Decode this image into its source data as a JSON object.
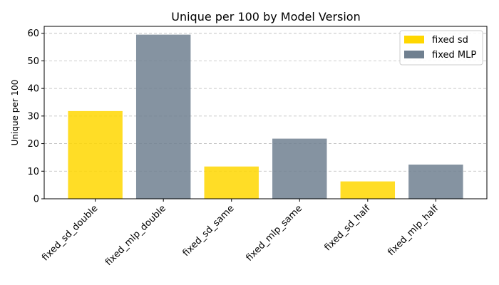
{
  "chart_data": {
    "type": "bar",
    "title": "Unique per 100 by Model Version",
    "xlabel": "",
    "ylabel": "Unique per 100",
    "ylim": [
      0,
      62.5
    ],
    "yticks": [
      0,
      10,
      20,
      30,
      40,
      50,
      60
    ],
    "grid": "y-dashed",
    "legend_position": "top-right",
    "categories": [
      "fixed_sd_double",
      "fixed_mlp_double",
      "fixed_sd_same",
      "fixed_mlp_same",
      "fixed_sd_half",
      "fixed_mlp_half"
    ],
    "values": [
      31.8,
      59.5,
      11.7,
      21.8,
      6.3,
      12.4
    ],
    "bar_series": [
      0,
      1,
      0,
      1,
      0,
      1
    ],
    "series": [
      {
        "name": "fixed sd",
        "color": "#FFD700"
      },
      {
        "name": "fixed MLP",
        "color": "#708090"
      }
    ]
  }
}
